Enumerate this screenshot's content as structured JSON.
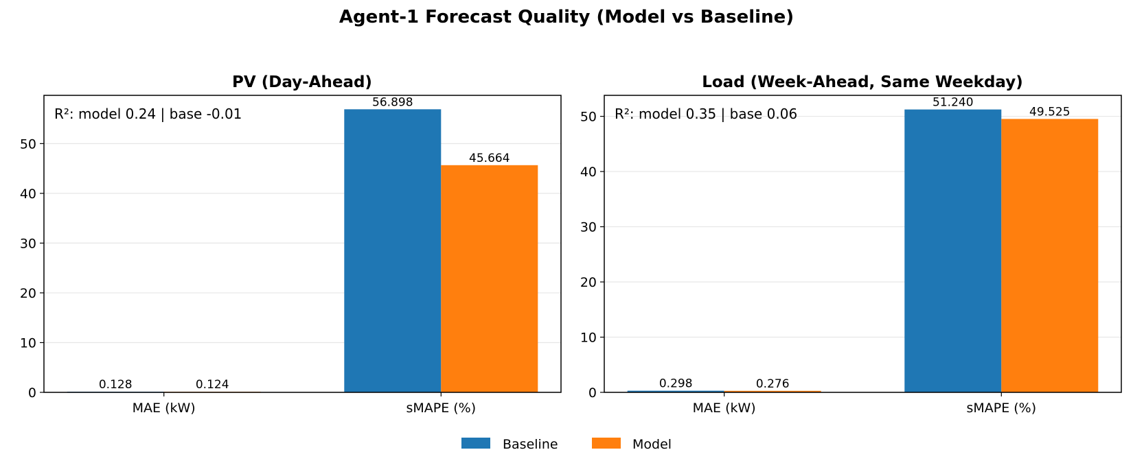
{
  "suptitle": "Agent-1 Forecast Quality (Model vs Baseline)",
  "colors": {
    "Baseline": "#1f77b4",
    "Model": "#ff7f0e",
    "grid": "#e6e6e6"
  },
  "legend": {
    "placement": "bottom-center",
    "items": [
      "Baseline",
      "Model"
    ]
  },
  "chart_data": [
    {
      "type": "bar",
      "title": "PV (Day-Ahead)",
      "annotation": "R²: model 0.24 | base -0.01",
      "categories": [
        "MAE (kW)",
        "sMAPE (%)"
      ],
      "series": [
        {
          "name": "Baseline",
          "values": [
            0.128,
            56.898
          ]
        },
        {
          "name": "Model",
          "values": [
            0.124,
            45.664
          ]
        }
      ],
      "value_labels": {
        "Baseline": [
          "0.128",
          "56.898"
        ],
        "Model": [
          "0.124",
          "45.664"
        ]
      },
      "ylim": [
        0,
        59.7
      ],
      "yticks": [
        0,
        10,
        20,
        30,
        40,
        50
      ],
      "grid": "y"
    },
    {
      "type": "bar",
      "title": "Load (Week-Ahead, Same Weekday)",
      "annotation": "R²: model 0.35 | base 0.06",
      "categories": [
        "MAE (kW)",
        "sMAPE (%)"
      ],
      "series": [
        {
          "name": "Baseline",
          "values": [
            0.298,
            51.24
          ]
        },
        {
          "name": "Model",
          "values": [
            0.276,
            49.525
          ]
        }
      ],
      "value_labels": {
        "Baseline": [
          "0.298",
          "51.240"
        ],
        "Model": [
          "0.276",
          "49.525"
        ]
      },
      "ylim": [
        0,
        53.8
      ],
      "yticks": [
        0,
        10,
        20,
        30,
        40,
        50
      ],
      "grid": "y"
    }
  ]
}
